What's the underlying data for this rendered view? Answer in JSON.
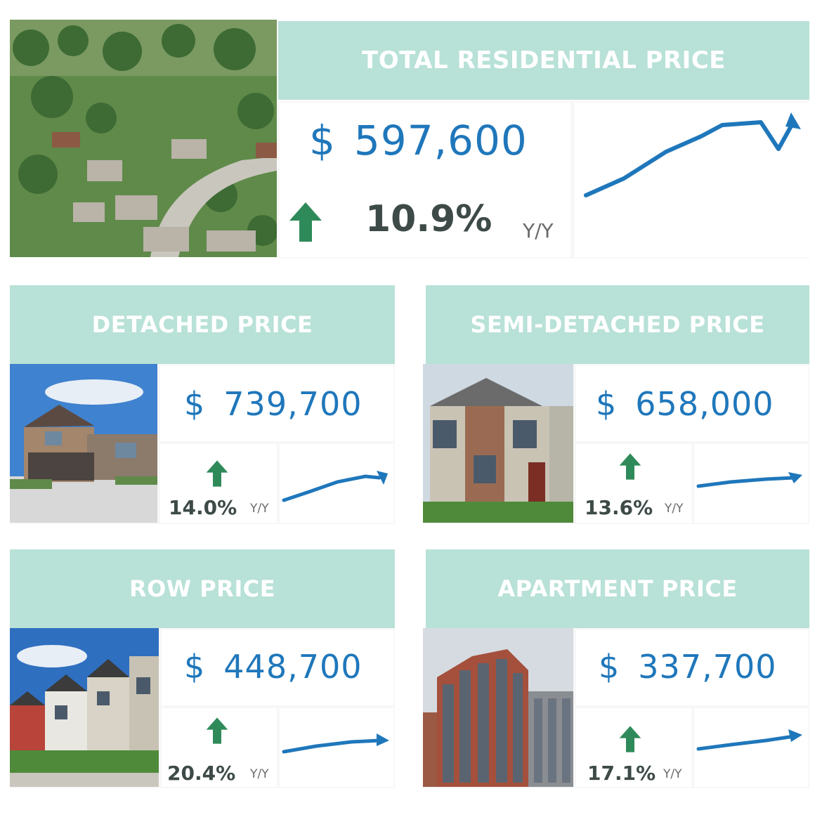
{
  "colors": {
    "header_bg": "#b8e1d7",
    "header_text": "#ffffff",
    "price": "#1f77bb",
    "arrow": "#2f8a5a",
    "trend_line": "#1f77bb",
    "percent": "#3d4a48"
  },
  "total": {
    "title": "TOTAL RESIDENTIAL PRICE",
    "currency": "$",
    "price": "597,600",
    "change_icon": "up-arrow-icon",
    "change": "10.9%",
    "change_label": "Y/Y",
    "photo": "aerial-neighbourhood-photo"
  },
  "detached": {
    "title": "DETACHED PRICE",
    "currency": "$",
    "price": "739,700",
    "change_icon": "up-arrow-icon",
    "change": "14.0%",
    "change_label": "Y/Y",
    "photo": "detached-house-photo"
  },
  "semi_detached": {
    "title": "SEMI-DETACHED PRICE",
    "currency": "$",
    "price": "658,000",
    "change_icon": "up-arrow-icon",
    "change": "13.6%",
    "change_label": "Y/Y",
    "photo": "semi-detached-house-photo"
  },
  "row": {
    "title": "ROW PRICE",
    "currency": "$",
    "price": "448,700",
    "change_icon": "up-arrow-icon",
    "change": "20.4%",
    "change_label": "Y/Y",
    "photo": "row-houses-photo"
  },
  "apartment": {
    "title": "APARTMENT PRICE",
    "currency": "$",
    "price": "337,700",
    "change_icon": "up-arrow-icon",
    "change": "17.1%",
    "change_label": "Y/Y",
    "photo": "apartment-tower-photo"
  }
}
